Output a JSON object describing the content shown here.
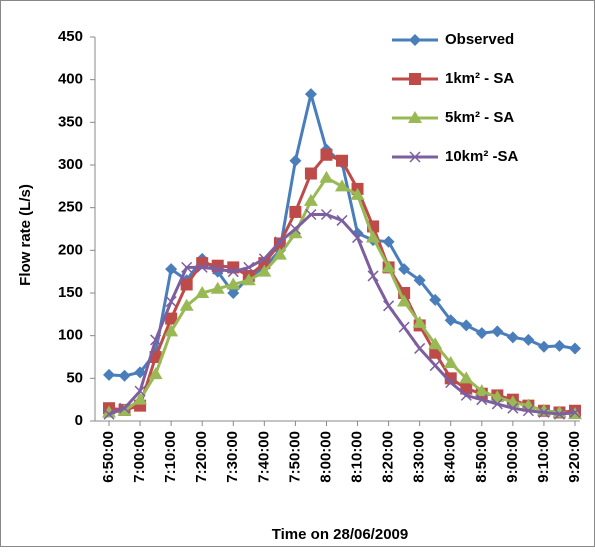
{
  "chart_data": {
    "type": "line",
    "x_label": "Time on 28/06/2009",
    "y_label": "Flow rate (L/s)",
    "categories": [
      "6:50:00",
      null,
      "7:00:00",
      null,
      "7:10:00",
      null,
      "7:20:00",
      null,
      "7:30:00",
      null,
      "7:40:00",
      null,
      "7:50:00",
      null,
      "8:00:00",
      null,
      "8:10:00",
      null,
      "8:20:00",
      null,
      "8:30:00",
      null,
      "8:40:00",
      null,
      "8:50:00",
      null,
      "9:00:00",
      null,
      "9:10:00",
      null,
      "9:20:00"
    ],
    "ylim": [
      0,
      450
    ],
    "yticks": [
      0,
      50,
      100,
      150,
      200,
      250,
      300,
      350,
      400,
      450
    ],
    "legend": "top-right",
    "series": [
      {
        "name": "Observed",
        "color": "#4a7ebb",
        "marker": "diamond",
        "values": [
          54,
          53,
          57,
          80,
          178,
          165,
          190,
          175,
          150,
          168,
          180,
          200,
          305,
          383,
          318,
          303,
          220,
          212,
          210,
          178,
          165,
          142,
          118,
          112,
          103,
          105,
          98,
          95,
          87,
          88,
          85
        ]
      },
      {
        "name": "1km² - SA",
        "color": "#be4b48",
        "marker": "square",
        "values": [
          15,
          13,
          18,
          75,
          120,
          160,
          185,
          182,
          180,
          170,
          185,
          208,
          245,
          290,
          312,
          305,
          272,
          228,
          180,
          150,
          112,
          80,
          50,
          38,
          32,
          30,
          25,
          18,
          12,
          10,
          12
        ]
      },
      {
        "name": "5km² - SA",
        "color": "#98b954",
        "marker": "triangle",
        "values": [
          10,
          12,
          25,
          55,
          105,
          135,
          150,
          155,
          160,
          165,
          175,
          195,
          220,
          258,
          285,
          275,
          265,
          215,
          180,
          140,
          115,
          90,
          68,
          50,
          35,
          28,
          22,
          18,
          12,
          10,
          8
        ]
      },
      {
        "name": "10km² -SA",
        "color": "#7d5fa0",
        "marker": "x",
        "values": [
          8,
          15,
          35,
          95,
          140,
          180,
          180,
          178,
          175,
          180,
          190,
          210,
          225,
          242,
          242,
          235,
          215,
          170,
          135,
          110,
          85,
          65,
          45,
          30,
          25,
          20,
          15,
          12,
          10,
          8,
          10
        ]
      }
    ]
  }
}
